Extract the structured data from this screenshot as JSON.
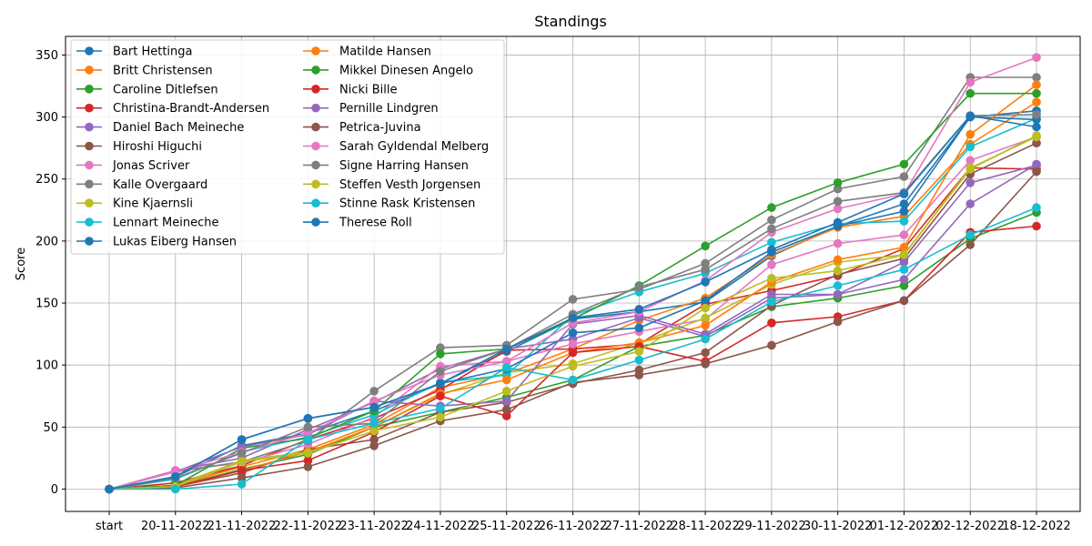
{
  "chart_data": {
    "type": "line",
    "title": "Standings",
    "xlabel": "",
    "ylabel": "Score",
    "ylim": [
      -18,
      365
    ],
    "yticks": [
      0,
      50,
      100,
      150,
      200,
      250,
      300,
      350
    ],
    "grid": true,
    "legend_position": "top-left",
    "legend_columns": 2,
    "categories": [
      "start",
      "20-11-2022",
      "21-11-2022",
      "22-11-2022",
      "23-11-2022",
      "24-11-2022",
      "25-11-2022",
      "26-11-2022",
      "27-11-2022",
      "28-11-2022",
      "29-11-2022",
      "30-11-2022",
      "01-12-2022",
      "02-12-2022",
      "18-12-2022"
    ],
    "series": [
      {
        "name": "Bart Hettinga",
        "color": "#1f77b4",
        "values": [
          0,
          10,
          35,
          45,
          63,
          85,
          111,
          137,
          143,
          151,
          188,
          212,
          230,
          300,
          305
        ]
      },
      {
        "name": "Britt Christensen",
        "color": "#ff7f0e",
        "values": [
          0,
          3,
          18,
          32,
          52,
          82,
          93,
          113,
          136,
          154,
          189,
          211,
          220,
          278,
          312
        ]
      },
      {
        "name": "Caroline Ditlefsen",
        "color": "#2ca02c",
        "values": [
          0,
          2,
          16,
          28,
          50,
          62,
          74,
          88,
          115,
          124,
          147,
          154,
          164,
          202,
          223
        ]
      },
      {
        "name": "Christina-Brandt-Andersen",
        "color": "#d62728",
        "values": [
          0,
          5,
          19,
          40,
          57,
          80,
          112,
          113,
          117,
          149,
          160,
          172,
          194,
          259,
          258
        ]
      },
      {
        "name": "Daniel Bach Meineche",
        "color": "#9467bd",
        "values": [
          0,
          15,
          25,
          48,
          70,
          97,
          113,
          121,
          138,
          123,
          154,
          157,
          169,
          230,
          262
        ]
      },
      {
        "name": "Hiroshi Higuchi",
        "color": "#8c564b",
        "values": [
          0,
          2,
          13,
          32,
          40,
          62,
          70,
          85,
          96,
          110,
          148,
          173,
          186,
          254,
          279
        ]
      },
      {
        "name": "Jonas Scriver",
        "color": "#e377c2",
        "values": [
          0,
          15,
          21,
          36,
          58,
          99,
          103,
          117,
          127,
          137,
          181,
          198,
          205,
          265,
          284
        ]
      },
      {
        "name": "Kalle Overgaard",
        "color": "#7f7f7f",
        "values": [
          0,
          14,
          22,
          39,
          79,
          114,
          116,
          153,
          161,
          182,
          217,
          242,
          252,
          332,
          332
        ]
      },
      {
        "name": "Kine Kjaernsli",
        "color": "#bcbd22",
        "values": [
          0,
          3,
          23,
          30,
          50,
          76,
          94,
          101,
          118,
          138,
          165,
          183,
          189,
          259,
          284
        ]
      },
      {
        "name": "Lennart Meineche",
        "color": "#17becf",
        "values": [
          0,
          8,
          30,
          42,
          60,
          86,
          92,
          140,
          159,
          174,
          199,
          214,
          216,
          276,
          299
        ]
      },
      {
        "name": "Lukas Eiberg Hansen",
        "color": "#1f77b4",
        "values": [
          0,
          10,
          40,
          57,
          66,
          85,
          97,
          126,
          130,
          152,
          191,
          212,
          224,
          300,
          298
        ]
      },
      {
        "name": "Matilde Hansen",
        "color": "#ff7f0e",
        "values": [
          0,
          2,
          15,
          30,
          50,
          77,
          88,
          110,
          118,
          132,
          167,
          185,
          195,
          286,
          326
        ]
      },
      {
        "name": "Mikkel Dinesen Angelo",
        "color": "#2ca02c",
        "values": [
          0,
          3,
          33,
          41,
          63,
          109,
          113,
          137,
          164,
          196,
          227,
          247,
          262,
          319,
          319
        ]
      },
      {
        "name": "Nicki Bille",
        "color": "#d62728",
        "values": [
          0,
          2,
          15,
          23,
          46,
          75,
          59,
          110,
          115,
          103,
          134,
          139,
          152,
          207,
          212
        ]
      },
      {
        "name": "Pernille Lindgren",
        "color": "#9467bd",
        "values": [
          0,
          14,
          34,
          44,
          71,
          67,
          71,
          133,
          140,
          125,
          157,
          157,
          183,
          247,
          261
        ]
      },
      {
        "name": "Petrica-Juvina",
        "color": "#8c564b",
        "values": [
          0,
          1,
          9,
          18,
          35,
          55,
          64,
          86,
          92,
          101,
          116,
          135,
          152,
          197,
          256
        ]
      },
      {
        "name": "Sarah Gyldendal Melberg",
        "color": "#e377c2",
        "values": [
          0,
          14,
          30,
          45,
          71,
          92,
          103,
          134,
          143,
          168,
          207,
          226,
          238,
          328,
          348
        ]
      },
      {
        "name": "Signe Harring Hansen",
        "color": "#7f7f7f",
        "values": [
          0,
          9,
          29,
          50,
          53,
          95,
          113,
          141,
          163,
          177,
          210,
          232,
          239,
          301,
          302
        ]
      },
      {
        "name": "Steffen Vesth Jorgensen",
        "color": "#bcbd22",
        "values": [
          0,
          2,
          22,
          29,
          47,
          58,
          79,
          99,
          111,
          146,
          170,
          176,
          189,
          258,
          285
        ]
      },
      {
        "name": "Stinne Rask Kristensen",
        "color": "#17becf",
        "values": [
          0,
          0,
          4,
          40,
          53,
          65,
          98,
          88,
          104,
          121,
          151,
          164,
          177,
          205,
          227
        ]
      },
      {
        "name": "Therese Roll",
        "color": "#1f77b4",
        "values": [
          0,
          10,
          40,
          57,
          66,
          85,
          113,
          138,
          145,
          167,
          193,
          215,
          238,
          301,
          292
        ]
      }
    ]
  }
}
